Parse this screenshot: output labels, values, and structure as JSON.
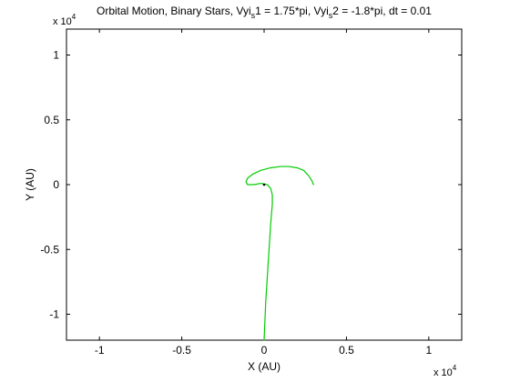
{
  "chart_data": {
    "type": "line",
    "title": "Orbital Motion, Binary Stars, Vyi_s1 = 1.75*pi, Vyi_s2 = -1.8*pi, dt = 0.01",
    "title_parts": {
      "p1": "Orbital Motion, Binary Stars, Vyi",
      "s1": "s",
      "p2": "1 = 1.75*pi, Vyi",
      "s2": "s",
      "p3": "2 = -1.8*pi, dt = 0.01"
    },
    "xlabel": "X (AU)",
    "ylabel": "Y (AU)",
    "xlim": [
      -1.2,
      1.2
    ],
    "ylim": [
      -1.2,
      1.2
    ],
    "xticks": [
      -1,
      -0.5,
      0,
      0.5,
      1
    ],
    "xtick_labels": [
      "-1",
      "-0.5",
      "0",
      "0.5",
      "1"
    ],
    "yticks": [
      1,
      0.5,
      0,
      -0.5,
      -1
    ],
    "ytick_labels": [
      "1",
      "0.5",
      "0",
      "-0.5",
      "-1"
    ],
    "x_multiplier": {
      "base": "x 10",
      "exponent": "4"
    },
    "y_multiplier": {
      "base": "x 10",
      "exponent": "4"
    },
    "grid": false,
    "series": [
      {
        "color": "#00cc00",
        "x": [
          0.3,
          0.29,
          0.27,
          0.24,
          0.2,
          0.15,
          0.1,
          0.04,
          -0.02,
          -0.07,
          -0.1,
          -0.11,
          -0.1,
          -0.06,
          -0.02,
          0.02,
          0.04,
          0.05,
          0.05,
          0.04,
          0.03,
          0.02,
          0.01,
          0.0
        ],
        "y": [
          0.0,
          0.03,
          0.07,
          0.11,
          0.13,
          0.14,
          0.14,
          0.13,
          0.11,
          0.08,
          0.05,
          0.02,
          0.0,
          0.0,
          0.01,
          0.0,
          -0.03,
          -0.08,
          -0.15,
          -0.3,
          -0.5,
          -0.7,
          -0.9,
          -1.2
        ]
      }
    ],
    "markers": [
      {
        "x": 0.0,
        "y": 0.0,
        "color": "#000000"
      }
    ]
  }
}
